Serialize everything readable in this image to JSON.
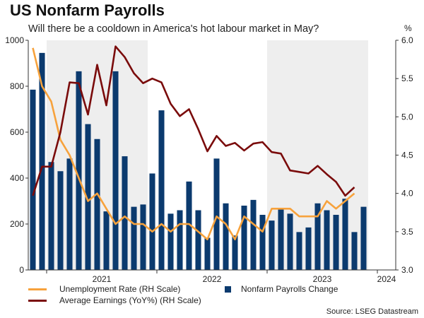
{
  "title": "US Nonfarm Payrolls",
  "subtitle": "Will there be a cooldown in America's hot labour market in May?",
  "right_unit": "%",
  "source": "Source: LSEG Datastream",
  "colors": {
    "payrolls": "#0b3a6e",
    "unemployment": "#f7a23c",
    "earnings": "#7a0b0b",
    "shade": "#eeeeee",
    "axis": "#333333",
    "grid": "#d9d9d9"
  },
  "chart_data": {
    "type": "bar",
    "title": "US Nonfarm Payrolls",
    "subtitle": "Will there be a cooldown in America's hot labour market in May?",
    "x_labels": [
      "2021",
      "2022",
      "2023",
      "2024"
    ],
    "left_axis": {
      "ylim": [
        0,
        1000
      ],
      "ticks": [
        "0",
        "200",
        "400",
        "600",
        "800",
        "1000"
      ]
    },
    "right_axis": {
      "ylim": [
        3.0,
        6.0
      ],
      "ticks": [
        "3.0",
        "3.5",
        "4.0",
        "4.5",
        "5.0",
        "5.5",
        "6.0"
      ]
    },
    "shaded_periods": [
      {
        "from": 2,
        "to": 13
      },
      {
        "from": 26,
        "to": 37
      }
    ],
    "months_count": 40,
    "series": [
      {
        "name": "Nonfarm Payrolls Change",
        "kind": "bar",
        "axis": "left",
        "values": [
          785,
          945,
          470,
          430,
          485,
          865,
          635,
          570,
          255,
          865,
          495,
          275,
          285,
          420,
          695,
          245,
          260,
          385,
          260,
          140,
          485,
          290,
          150,
          280,
          305,
          240,
          215,
          270,
          245,
          165,
          185,
          290,
          260,
          240,
          310,
          165,
          275,
          null,
          null,
          null
        ]
      },
      {
        "name": "Unemployment Rate (RH Scale)",
        "kind": "line",
        "axis": "right",
        "values": [
          5.9,
          5.4,
          5.2,
          4.7,
          4.5,
          4.2,
          3.9,
          4.0,
          3.8,
          3.6,
          3.7,
          3.6,
          3.6,
          3.5,
          3.6,
          3.5,
          3.6,
          3.6,
          3.5,
          3.4,
          3.7,
          3.6,
          3.4,
          3.7,
          3.6,
          3.5,
          3.8,
          3.8,
          3.8,
          3.7,
          3.7,
          3.7,
          3.9,
          3.8,
          3.9,
          4.0,
          null,
          null,
          null,
          null
        ]
      },
      {
        "name": "Average Earnings (YoY%) (RH Scale)",
        "kind": "line",
        "axis": "right",
        "values": [
          3.97,
          4.35,
          4.35,
          4.8,
          5.45,
          5.44,
          5.03,
          5.68,
          5.15,
          5.92,
          5.78,
          5.57,
          5.44,
          5.5,
          5.45,
          5.17,
          5.01,
          5.1,
          4.84,
          4.55,
          4.75,
          4.62,
          4.66,
          4.56,
          4.65,
          4.67,
          4.54,
          4.52,
          4.3,
          4.28,
          4.26,
          4.36,
          4.25,
          4.15,
          3.97,
          4.08,
          null,
          null,
          null,
          null
        ]
      }
    ],
    "legend": {
      "placement": "bottom-left",
      "items": [
        "Unemployment Rate (RH Scale)",
        "Nonfarm Payrolls Change",
        "Average Earnings (YoY%) (RH Scale)"
      ]
    }
  }
}
